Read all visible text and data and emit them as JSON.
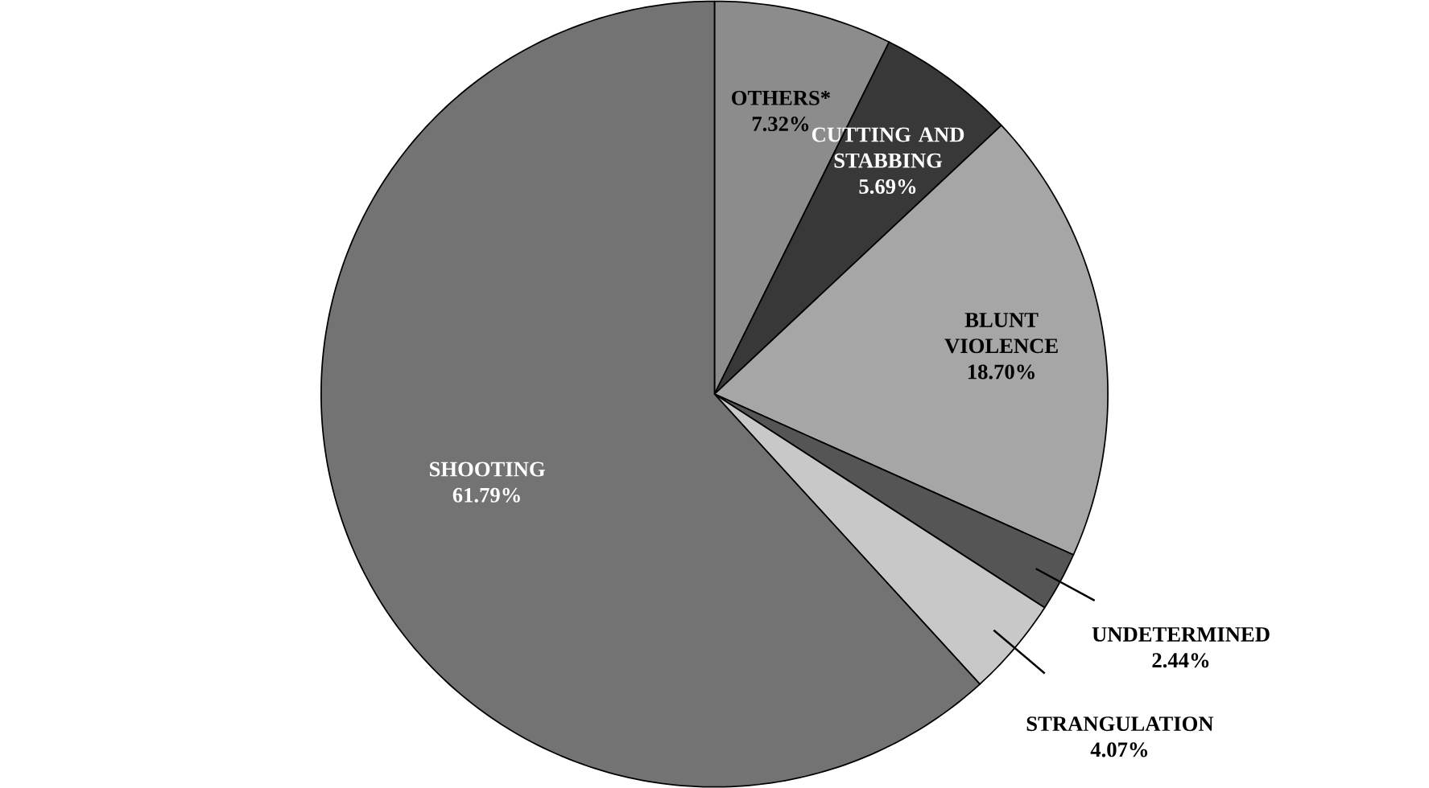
{
  "chart_data": {
    "type": "pie",
    "categories": [
      "OTHERS*",
      "CUTTING AND STABBING",
      "BLUNT VIOLENCE",
      "UNDETERMINED",
      "STRANGULATION",
      "SHOOTING"
    ],
    "values": [
      7.32,
      5.69,
      18.7,
      2.44,
      4.07,
      61.79
    ],
    "value_labels": [
      "7.32%",
      "5.69%",
      "18.70%",
      "2.44%",
      "4.07%",
      "61.79%"
    ],
    "colors": [
      "#8c8c8c",
      "#383838",
      "#a6a6a6",
      "#555555",
      "#c8c8c8",
      "#737373"
    ]
  }
}
